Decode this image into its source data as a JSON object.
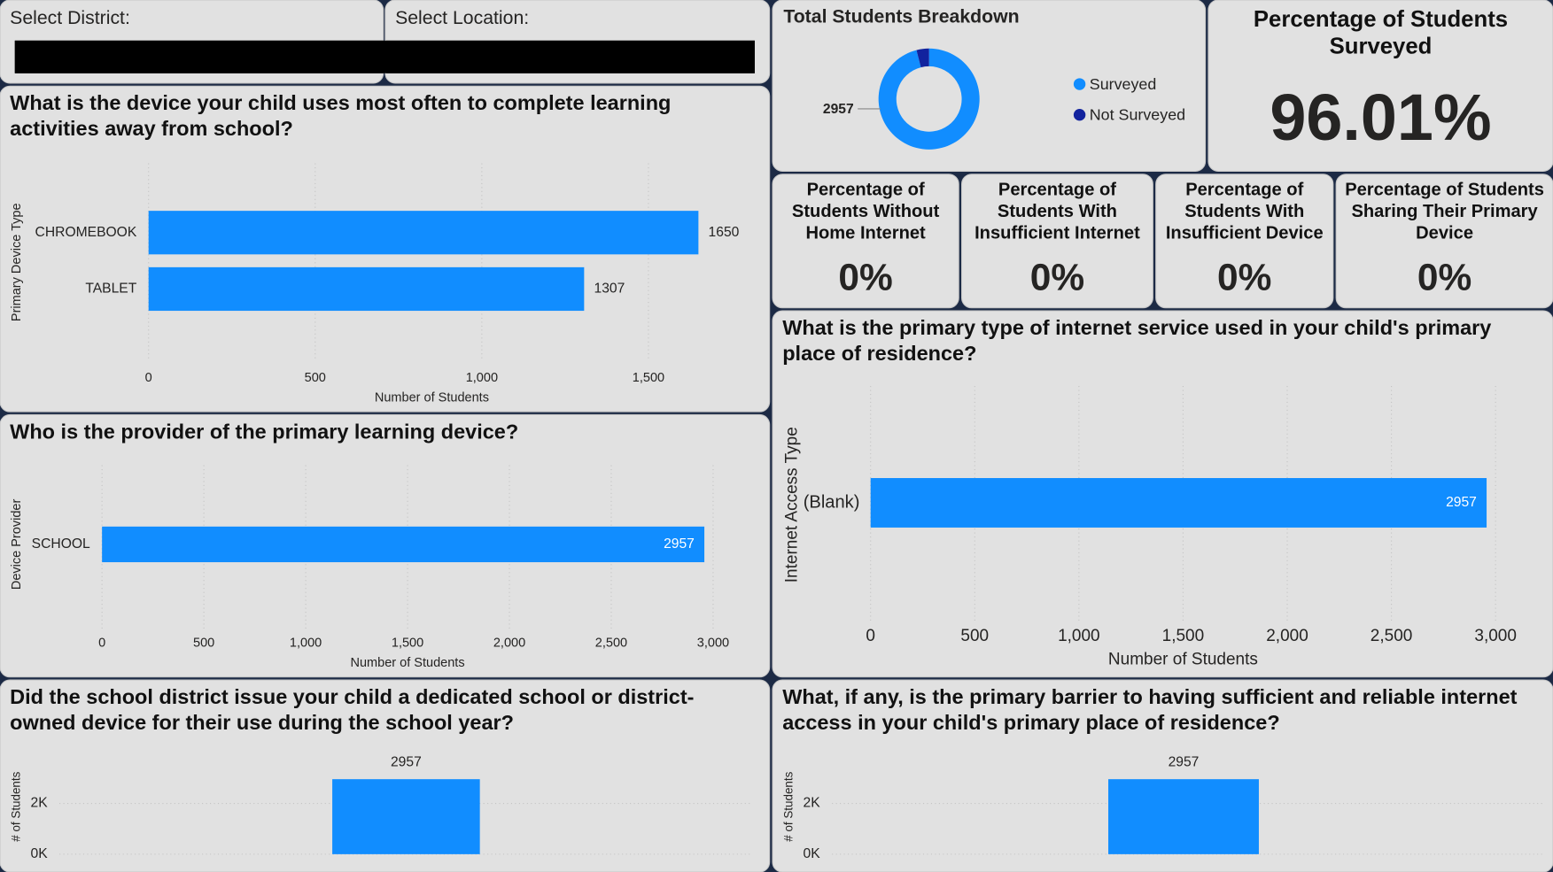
{
  "slicers": [
    {
      "label": "Select District:"
    },
    {
      "label": "Select Location:"
    }
  ],
  "kpis": [
    {
      "title": "Percentage of Students Surveyed",
      "value": "96.01%"
    },
    {
      "title": "Percentage of Students Without Home Internet",
      "value": "0%"
    },
    {
      "title": "Percentage of Students With Insufficient Internet",
      "value": "0%"
    },
    {
      "title": "Percentage of Students With Insufficient Device",
      "value": "0%"
    },
    {
      "title": "Percentage of Students Sharing Their Primary Device",
      "value": "0%"
    }
  ],
  "chart_data": [
    {
      "type": "donut",
      "title": "Total Students Breakdown",
      "categories": [
        "Surveyed",
        "Not Surveyed"
      ],
      "values": [
        2957,
        123
      ],
      "colors": [
        "#118dff",
        "#12239e"
      ],
      "legend": "right"
    },
    {
      "type": "hbar",
      "title": "What is the device your child uses most often to complete learning activities away from school?",
      "categories": [
        "CHROMEBOOK",
        "TABLET"
      ],
      "values": [
        1650,
        1307
      ],
      "color": "#118dff",
      "xlabel": "Number of Students",
      "ylabel": "Primary Device Type",
      "xlim": [
        0,
        1700
      ],
      "xticks": [
        0,
        500,
        {
          "value": 1000,
          "label": "1,000"
        },
        {
          "value": 1500,
          "label": "1,500"
        }
      ],
      "grid": true,
      "label_position": "outside"
    },
    {
      "type": "hbar",
      "title": "Who is the provider of the primary learning device?",
      "categories": [
        "SCHOOL"
      ],
      "values": [
        2957
      ],
      "color": "#118dff",
      "xlabel": "Number of Students",
      "ylabel": "Device Provider",
      "xlim": [
        0,
        3000
      ],
      "xticks": [
        0,
        500,
        {
          "value": 1000,
          "label": "1,000"
        },
        {
          "value": 1500,
          "label": "1,500"
        },
        {
          "value": 2000,
          "label": "2,000"
        },
        {
          "value": 2500,
          "label": "2,500"
        },
        {
          "value": 3000,
          "label": "3,000"
        }
      ],
      "grid": true,
      "label_position": "inside"
    },
    {
      "type": "hbar",
      "title": "What is the primary type of internet service used in your child's primary place of residence?",
      "categories": [
        "(Blank)"
      ],
      "values": [
        2957
      ],
      "color": "#118dff",
      "xlabel": "Number of Students",
      "ylabel": "Internet Access Type",
      "xlim": [
        0,
        3000
      ],
      "xticks": [
        0,
        500,
        {
          "value": 1000,
          "label": "1,000"
        },
        {
          "value": 1500,
          "label": "1,500"
        },
        {
          "value": 2000,
          "label": "2,000"
        },
        {
          "value": 2500,
          "label": "2,500"
        },
        {
          "value": 3000,
          "label": "3,000"
        }
      ],
      "grid": true,
      "label_position": "inside"
    },
    {
      "type": "vbar",
      "title": "Did the school district issue your child a dedicated school or district-owned device for their use during the school year?",
      "categories": [
        null
      ],
      "values": [
        2957
      ],
      "color": "#118dff",
      "ylabel": "# of Students",
      "ylim": [
        0,
        3200
      ],
      "yticks": [
        {
          "value": 0,
          "label": "0K"
        },
        {
          "value": 2000,
          "label": "2K"
        }
      ],
      "grid": true
    },
    {
      "type": "vbar",
      "title": "What, if any, is the primary barrier to having sufficient and reliable internet access in your child's primary place of residence?",
      "categories": [
        null
      ],
      "values": [
        2957
      ],
      "color": "#118dff",
      "ylabel": "# of Students",
      "ylim": [
        0,
        3200
      ],
      "yticks": [
        {
          "value": 0,
          "label": "0K"
        },
        {
          "value": 2000,
          "label": "2K"
        }
      ],
      "grid": true
    }
  ]
}
